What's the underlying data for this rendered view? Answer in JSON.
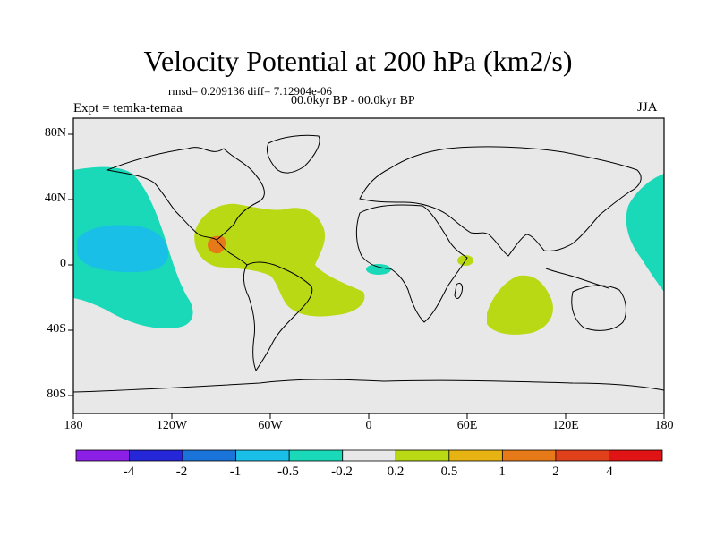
{
  "title": "Velocity Potential at 200 hPa (km2/s)",
  "stats": "rmsd= 0.209136 diff= 7.12904e-06",
  "period": "00.0kyr BP - 00.0kyr BP",
  "experiment": "Expt = temka-temaa",
  "season": "JJA",
  "y_ticks": [
    "80N",
    "40N",
    "0",
    "40S",
    "80S"
  ],
  "x_ticks": [
    "180",
    "120W",
    "60W",
    "0",
    "60E",
    "120E",
    "180"
  ],
  "colorbar": {
    "labels": [
      "-4",
      "-2",
      "-1",
      "-0.5",
      "-0.2",
      "0.2",
      "0.5",
      "1",
      "2",
      "4"
    ],
    "colors": [
      "#8c1fe6",
      "#2626d9",
      "#1a73d9",
      "#19bfe6",
      "#19d9b8",
      "#e8e8e8",
      "#b8d913",
      "#e6b312",
      "#e67a19",
      "#e0401a",
      "#e01414"
    ]
  },
  "map_colors": {
    "land_sea": "#e8e8e8",
    "neg_weak": "#19d9b8",
    "neg_mod": "#19bfe6",
    "pos_weak": "#b8d913",
    "pos_mod": "#e67a19"
  }
}
